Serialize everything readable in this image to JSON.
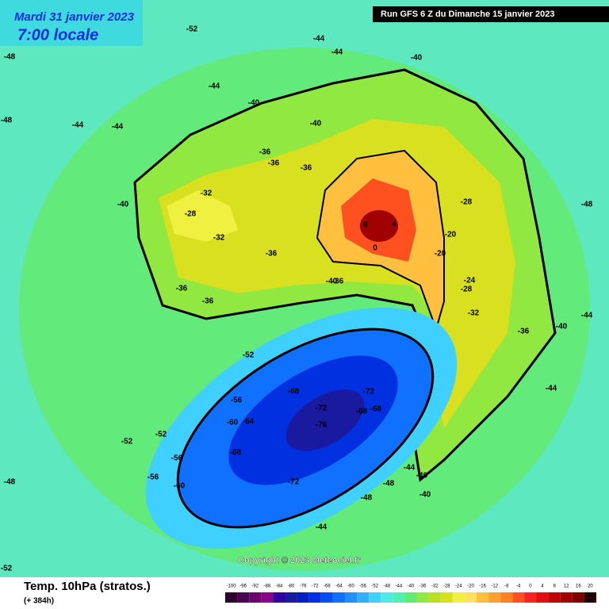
{
  "header": {
    "date": "Mardi 31 janvier 2023",
    "time": "7:00 locale",
    "run": "Run GFS 6 Z du Dimanche 15 janvier 2023"
  },
  "footer": {
    "title": "Temp. 10hPa (stratos.)",
    "lead": "(+ 384h)",
    "copyright": "Copyright © 2023 Meteociel.fr"
  },
  "legend": {
    "ticks": [
      -100,
      -96,
      -92,
      -88,
      -84,
      -80,
      -76,
      -72,
      -68,
      -64,
      -60,
      -56,
      -52,
      -48,
      -44,
      -40,
      -36,
      -32,
      -28,
      -24,
      -20,
      -16,
      -12,
      -8,
      -4,
      0,
      4,
      8,
      12,
      16,
      20
    ],
    "colors": [
      "#2d0030",
      "#4d0050",
      "#6e0070",
      "#8a008a",
      "#3300a0",
      "#1a1aa0",
      "#0020c0",
      "#0030e0",
      "#0050f0",
      "#1070ff",
      "#2090ff",
      "#30b0ff",
      "#40d0ff",
      "#50e8e8",
      "#50f0b0",
      "#60ee70",
      "#90e840",
      "#b8e020",
      "#d8e020",
      "#f0f040",
      "#ffe060",
      "#ffc040",
      "#ffa030",
      "#ff8020",
      "#ff5020",
      "#ff2020",
      "#e01010",
      "#c00000",
      "#a00000",
      "#800000",
      "#200000"
    ]
  },
  "map_labels": [
    -52,
    -44,
    -44,
    -40,
    -40,
    -48,
    -48,
    -44,
    -44,
    -44,
    -40,
    -40,
    -36,
    -36,
    -36,
    -32,
    -28,
    -32,
    -36,
    -36,
    -36,
    -40,
    -40,
    -36,
    -28,
    -20,
    -20,
    -24,
    -28,
    -32,
    -36,
    -40,
    -44,
    -44,
    -48,
    8,
    4,
    0,
    -52,
    -56,
    -60,
    -64,
    -68,
    -72,
    -76,
    -72,
    -68,
    -68,
    -56,
    -52,
    -56,
    -60,
    -68,
    -72,
    -48,
    -44,
    -44,
    -40,
    -48,
    -48,
    -52,
    -52
  ]
}
